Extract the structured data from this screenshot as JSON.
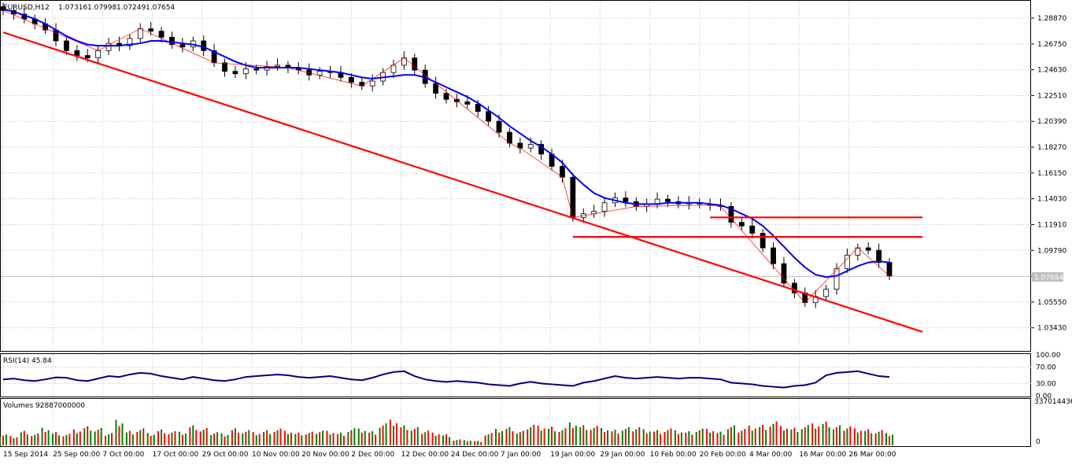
{
  "header": {
    "symbol": "EURUSD,H12",
    "open": "1.07316",
    "high": "1.07998",
    "low": "1.07249",
    "close": "1.07654"
  },
  "current_price_label": "1.07654",
  "colors": {
    "ma_line": "#0000ff",
    "trend_lines": "#ff0000",
    "zigzag": "#ff0000",
    "bull_candle": "#000000",
    "bear_candle": "#000000",
    "rsi_line": "#000080",
    "volume_up": "#008000",
    "volume_down": "#ff0000",
    "grid": "#c0c0c0",
    "price_tag_bg": "#c0c0c0"
  },
  "chart_data": [
    {
      "type": "line",
      "panel": "price",
      "title": "EURUSD,H12",
      "y_ticks": [
        "1.28870",
        "1.26750",
        "1.24630",
        "1.22510",
        "1.20390",
        "1.18270",
        "1.16150",
        "1.14030",
        "1.11910",
        "1.09790",
        "1.07654",
        "1.05550",
        "1.03430"
      ],
      "ylim": [
        1.016,
        1.301
      ],
      "x_tick_labels": [
        "15 Sep 2014",
        "25 Sep 00:00",
        "7 Oct 00:00",
        "17 Oct 00:00",
        "29 Oct 00:00",
        "10 Nov 00:00",
        "20 Nov 00:00",
        "2 Dec 00:00",
        "12 Dec 00:00",
        "24 Dec 00:00",
        "7 Jan 00:00",
        "19 Jan 00:00",
        "29 Jan 00:00",
        "10 Feb 00:00",
        "20 Feb 00:00",
        "4 Mar 00:00",
        "16 Mar 00:00",
        "26 Mar 00:00"
      ],
      "series": [
        {
          "kind": "close",
          "x": [
            "15 Sep 2014",
            "17 Sep",
            "19 Sep",
            "22 Sep",
            "24 Sep",
            "26 Sep",
            "29 Sep",
            "1 Oct",
            "3 Oct",
            "6 Oct",
            "8 Oct",
            "10 Oct",
            "13 Oct",
            "15 Oct",
            "17 Oct",
            "20 Oct",
            "22 Oct",
            "24 Oct",
            "27 Oct",
            "29 Oct",
            "31 Oct",
            "3 Nov",
            "5 Nov",
            "7 Nov",
            "10 Nov",
            "12 Nov",
            "14 Nov",
            "17 Nov",
            "19 Nov",
            "21 Nov",
            "24 Nov",
            "26 Nov",
            "28 Nov",
            "1 Dec",
            "3 Dec",
            "5 Dec",
            "8 Dec",
            "10 Dec",
            "12 Dec",
            "15 Dec",
            "17 Dec",
            "19 Dec",
            "22 Dec",
            "24 Dec",
            "26 Dec",
            "29 Dec",
            "31 Dec",
            "2 Jan",
            "5 Jan",
            "7 Jan",
            "9 Jan",
            "12 Jan",
            "14 Jan",
            "16 Jan",
            "19 Jan",
            "21 Jan",
            "23 Jan",
            "26 Jan",
            "28 Jan",
            "30 Jan",
            "2 Feb",
            "4 Feb",
            "6 Feb",
            "9 Feb",
            "11 Feb",
            "13 Feb",
            "16 Feb",
            "18 Feb",
            "20 Feb",
            "23 Feb",
            "25 Feb",
            "27 Feb",
            "2 Mar",
            "4 Mar",
            "6 Mar",
            "9 Mar",
            "11 Mar",
            "13 Mar",
            "16 Mar",
            "18 Mar",
            "20 Mar",
            "23 Mar",
            "25 Mar",
            "27 Mar",
            "30 Mar"
          ],
          "values": [
            1.295,
            1.292,
            1.288,
            1.284,
            1.279,
            1.27,
            1.262,
            1.258,
            1.256,
            1.262,
            1.268,
            1.266,
            1.272,
            1.28,
            1.278,
            1.273,
            1.267,
            1.265,
            1.27,
            1.262,
            1.252,
            1.245,
            1.243,
            1.247,
            1.246,
            1.249,
            1.25,
            1.248,
            1.246,
            1.242,
            1.245,
            1.244,
            1.24,
            1.236,
            1.233,
            1.237,
            1.244,
            1.25,
            1.256,
            1.246,
            1.235,
            1.227,
            1.222,
            1.22,
            1.218,
            1.212,
            1.204,
            1.195,
            1.186,
            1.182,
            1.185,
            1.177,
            1.167,
            1.158,
            1.125,
            1.128,
            1.13,
            1.137,
            1.141,
            1.138,
            1.134,
            1.136,
            1.14,
            1.138,
            1.136,
            1.137,
            1.136,
            1.135,
            1.134,
            1.121,
            1.118,
            1.112,
            1.1,
            1.087,
            1.071,
            1.063,
            1.055,
            1.06,
            1.066,
            1.083,
            1.094,
            1.1,
            1.098,
            1.088,
            1.077
          ]
        },
        {
          "kind": "moving_average",
          "values": [
            1.296,
            1.294,
            1.291,
            1.288,
            1.284,
            1.279,
            1.274,
            1.27,
            1.267,
            1.266,
            1.266,
            1.266,
            1.267,
            1.268,
            1.27,
            1.27,
            1.269,
            1.268,
            1.267,
            1.265,
            1.261,
            1.257,
            1.253,
            1.25,
            1.248,
            1.248,
            1.248,
            1.248,
            1.248,
            1.247,
            1.246,
            1.245,
            1.244,
            1.242,
            1.24,
            1.239,
            1.24,
            1.241,
            1.242,
            1.242,
            1.24,
            1.236,
            1.232,
            1.228,
            1.224,
            1.219,
            1.213,
            1.207,
            1.2,
            1.194,
            1.188,
            1.183,
            1.177,
            1.17,
            1.16,
            1.152,
            1.145,
            1.141,
            1.139,
            1.137,
            1.136,
            1.136,
            1.136,
            1.137,
            1.137,
            1.137,
            1.137,
            1.136,
            1.135,
            1.132,
            1.128,
            1.124,
            1.118,
            1.11,
            1.101,
            1.092,
            1.084,
            1.078,
            1.076,
            1.077,
            1.081,
            1.085,
            1.088,
            1.089,
            1.088
          ]
        }
      ],
      "lines": [
        {
          "name": "descending-trendline",
          "from": [
            "15 Sep 2014",
            1.277
          ],
          "to": [
            "19 Mar",
            1.031
          ]
        },
        {
          "name": "resistance-line-upper",
          "from": [
            "18 Feb",
            1.125
          ],
          "to": [
            "2 Apr",
            1.125
          ]
        },
        {
          "name": "resistance-line-lower",
          "from": [
            "19 Jan",
            1.109
          ],
          "to": [
            "28 Mar",
            1.109
          ]
        }
      ]
    },
    {
      "type": "line",
      "panel": "rsi",
      "title": "RSI(14) 45.84",
      "y_ticks": [
        "100.00",
        "70.00",
        "30.00",
        "0.00"
      ],
      "ylim": [
        0,
        100
      ],
      "values": [
        40,
        42,
        38,
        36,
        40,
        45,
        44,
        38,
        36,
        42,
        48,
        46,
        52,
        56,
        54,
        48,
        44,
        40,
        46,
        42,
        38,
        36,
        40,
        46,
        48,
        50,
        52,
        50,
        46,
        44,
        46,
        48,
        44,
        40,
        38,
        44,
        52,
        58,
        60,
        48,
        40,
        36,
        34,
        36,
        34,
        32,
        28,
        26,
        24,
        30,
        34,
        30,
        28,
        26,
        24,
        32,
        36,
        42,
        48,
        44,
        42,
        44,
        46,
        44,
        42,
        44,
        44,
        42,
        40,
        32,
        30,
        28,
        24,
        22,
        20,
        24,
        26,
        32,
        50,
        56,
        58,
        60,
        54,
        48,
        45.84
      ]
    },
    {
      "type": "bar",
      "panel": "volume",
      "title": "Volumes 92887000000",
      "y_ticks": [
        "337014436",
        "0"
      ],
      "values": [
        0.26,
        0.22,
        0.34,
        0.28,
        0.4,
        0.3,
        0.26,
        0.35,
        0.42,
        0.38,
        0.3,
        0.6,
        0.34,
        0.4,
        0.28,
        0.36,
        0.32,
        0.3,
        0.44,
        0.38,
        0.32,
        0.28,
        0.4,
        0.36,
        0.3,
        0.34,
        0.38,
        0.32,
        0.28,
        0.3,
        0.36,
        0.34,
        0.3,
        0.4,
        0.38,
        0.32,
        0.5,
        0.56,
        0.44,
        0.4,
        0.36,
        0.3,
        0.26,
        0.14,
        0.12,
        0.1,
        0.28,
        0.36,
        0.4,
        0.32,
        0.5,
        0.46,
        0.44,
        0.4,
        0.52,
        0.46,
        0.44,
        0.38,
        0.34,
        0.4,
        0.44,
        0.38,
        0.36,
        0.4,
        0.34,
        0.32,
        0.38,
        0.36,
        0.3,
        0.44,
        0.4,
        0.46,
        0.48,
        0.56,
        0.44,
        0.4,
        0.46,
        0.48,
        0.52,
        0.44,
        0.46,
        0.4,
        0.38,
        0.36,
        0.28
      ],
      "up": [
        true,
        false,
        true,
        false,
        true,
        true,
        false,
        false,
        true,
        true,
        false,
        true,
        true,
        false,
        true,
        false,
        false,
        true,
        false,
        false,
        true,
        true,
        false,
        true,
        false,
        true,
        false,
        false,
        true,
        false,
        true,
        false,
        false,
        true,
        true,
        false,
        true,
        false,
        false,
        true,
        false,
        false,
        true,
        false,
        true,
        false,
        false,
        true,
        false,
        true,
        false,
        false,
        true,
        false,
        true,
        true,
        false,
        true,
        false,
        true,
        false,
        true,
        false,
        false,
        true,
        false,
        true,
        false,
        false,
        true,
        false,
        false,
        true,
        false,
        false,
        true,
        true,
        false,
        true,
        true,
        false,
        false,
        true,
        false,
        true
      ]
    }
  ]
}
